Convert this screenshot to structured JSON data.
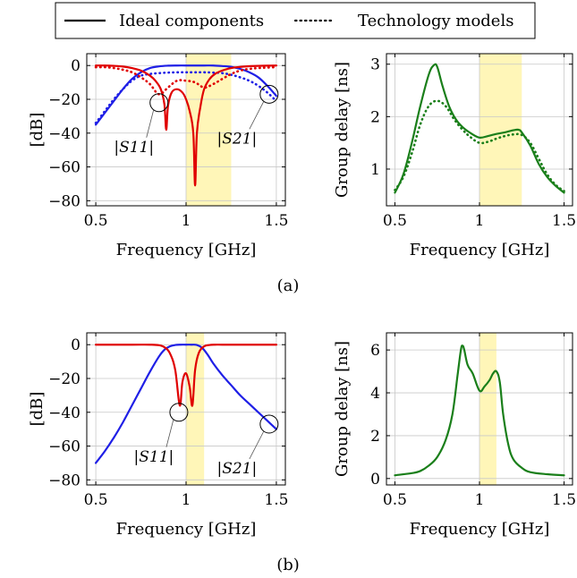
{
  "legend": {
    "ideal_label": "Ideal components",
    "tech_label": "Technology models"
  },
  "captions": {
    "a": "(a)",
    "b": "(b)"
  },
  "colors": {
    "s11": "#e00000",
    "s21": "#1f1fe6",
    "group_delay": "#1a7f1a",
    "passband": "#fff6b8"
  },
  "chart_data": [
    {
      "id": "a-s-params",
      "type": "line",
      "xlabel": "Frequency [GHz]",
      "ylabel": "[dB]",
      "xlim": [
        0.45,
        1.55
      ],
      "ylim": [
        -83,
        7
      ],
      "xticks": [
        0.5,
        1,
        1.5
      ],
      "xtick_labels": [
        "0.5",
        "1",
        "1.5"
      ],
      "yticks": [
        0,
        -20,
        -40,
        -60,
        -80
      ],
      "ytick_labels": [
        "0",
        "−20",
        "−40",
        "−60",
        "−80"
      ],
      "grid": true,
      "passband": [
        1.0,
        1.25
      ],
      "annotations": [
        {
          "text": "|S11|",
          "mark_x": 0.85,
          "mark_y": -22
        },
        {
          "text": "|S21|",
          "mark_x": 1.46,
          "mark_y": -17
        }
      ],
      "series": [
        {
          "id": "S21-ideal",
          "color": "s21",
          "style": "solid",
          "x": [
            0.5,
            0.55,
            0.6,
            0.65,
            0.7,
            0.75,
            0.8,
            0.85,
            0.9,
            0.95,
            1.0,
            1.05,
            1.1,
            1.15,
            1.2,
            1.25,
            1.3,
            1.35,
            1.4,
            1.45,
            1.5
          ],
          "y": [
            -35,
            -28,
            -21,
            -14,
            -8,
            -4,
            -1.5,
            -0.5,
            -0.1,
            0,
            0,
            0,
            0,
            0,
            -0.3,
            -0.8,
            -2,
            -4,
            -7,
            -12,
            -18
          ]
        },
        {
          "id": "S21-tech",
          "color": "s21",
          "style": "dotted",
          "x": [
            0.5,
            0.55,
            0.6,
            0.65,
            0.7,
            0.75,
            0.8,
            0.85,
            0.9,
            0.95,
            1.0,
            1.05,
            1.1,
            1.15,
            1.2,
            1.25,
            1.3,
            1.35,
            1.4,
            1.45,
            1.5
          ],
          "y": [
            -34,
            -27,
            -20,
            -14,
            -9,
            -6,
            -5,
            -4.5,
            -4.2,
            -4,
            -4,
            -4,
            -4,
            -4.2,
            -4.5,
            -5.5,
            -7,
            -9,
            -12,
            -16,
            -21
          ]
        },
        {
          "id": "S11-ideal",
          "color": "s11",
          "style": "solid",
          "x": [
            0.5,
            0.55,
            0.6,
            0.65,
            0.7,
            0.75,
            0.8,
            0.83,
            0.86,
            0.88,
            0.89,
            0.9,
            0.92,
            0.95,
            0.98,
            1.0,
            1.02,
            1.04,
            1.05,
            1.06,
            1.08,
            1.1,
            1.13,
            1.16,
            1.2,
            1.25,
            1.3,
            1.35,
            1.4,
            1.45,
            1.5
          ],
          "y": [
            0,
            0,
            -0.2,
            -0.6,
            -1.5,
            -3,
            -6,
            -9,
            -14,
            -23,
            -38,
            -24,
            -16,
            -14,
            -16,
            -20,
            -27,
            -40,
            -71,
            -40,
            -24,
            -14,
            -8,
            -5,
            -3,
            -1.5,
            -0.8,
            -0.4,
            -0.2,
            -0.1,
            0
          ]
        },
        {
          "id": "S11-tech",
          "color": "s11",
          "style": "dotted",
          "x": [
            0.5,
            0.55,
            0.6,
            0.65,
            0.7,
            0.75,
            0.8,
            0.85,
            0.9,
            0.95,
            1.0,
            1.05,
            1.1,
            1.15,
            1.2,
            1.25,
            1.3,
            1.35,
            1.4,
            1.45,
            1.5
          ],
          "y": [
            -1,
            -1,
            -1.5,
            -2.5,
            -4,
            -7,
            -11,
            -17,
            -13,
            -9,
            -9,
            -10,
            -13,
            -11,
            -8,
            -5,
            -3,
            -2,
            -1.5,
            -1.2,
            -1
          ]
        }
      ]
    },
    {
      "id": "a-group-delay",
      "type": "line",
      "xlabel": "Frequency [GHz]",
      "ylabel": "Group delay [ns]",
      "xlim": [
        0.45,
        1.55
      ],
      "ylim": [
        0.3,
        3.2
      ],
      "xticks": [
        0.5,
        1,
        1.5
      ],
      "xtick_labels": [
        "0.5",
        "1",
        "1.5"
      ],
      "yticks": [
        1,
        2,
        3
      ],
      "ytick_labels": [
        "1",
        "2",
        "3"
      ],
      "grid": true,
      "passband": [
        1.0,
        1.25
      ],
      "series": [
        {
          "id": "GD-ideal",
          "color": "group_delay",
          "style": "solid",
          "x": [
            0.5,
            0.55,
            0.6,
            0.65,
            0.7,
            0.73,
            0.75,
            0.78,
            0.82,
            0.86,
            0.9,
            0.95,
            1.0,
            1.05,
            1.1,
            1.15,
            1.2,
            1.23,
            1.25,
            1.3,
            1.35,
            1.4,
            1.45,
            1.5
          ],
          "y": [
            0.55,
            0.9,
            1.5,
            2.2,
            2.8,
            2.98,
            2.95,
            2.6,
            2.2,
            1.95,
            1.8,
            1.68,
            1.6,
            1.63,
            1.67,
            1.7,
            1.74,
            1.75,
            1.7,
            1.45,
            1.1,
            0.85,
            0.68,
            0.55
          ]
        },
        {
          "id": "GD-tech",
          "color": "group_delay",
          "style": "dotted",
          "x": [
            0.5,
            0.55,
            0.6,
            0.65,
            0.7,
            0.75,
            0.8,
            0.85,
            0.9,
            0.95,
            1.0,
            1.05,
            1.1,
            1.15,
            1.2,
            1.25,
            1.3,
            1.35,
            1.4,
            1.45,
            1.5
          ],
          "y": [
            0.6,
            0.85,
            1.3,
            1.85,
            2.2,
            2.3,
            2.2,
            1.95,
            1.75,
            1.6,
            1.5,
            1.52,
            1.58,
            1.63,
            1.66,
            1.65,
            1.5,
            1.2,
            0.9,
            0.7,
            0.58
          ]
        }
      ]
    },
    {
      "id": "b-s-params",
      "type": "line",
      "xlabel": "Frequency [GHz]",
      "ylabel": "[dB]",
      "xlim": [
        0.45,
        1.55
      ],
      "ylim": [
        -83,
        7
      ],
      "xticks": [
        0.5,
        1,
        1.5
      ],
      "xtick_labels": [
        "0.5",
        "1",
        "1.5"
      ],
      "yticks": [
        0,
        -20,
        -40,
        -60,
        -80
      ],
      "ytick_labels": [
        "0",
        "−20",
        "−40",
        "−60",
        "−80"
      ],
      "grid": true,
      "passband": [
        1.0,
        1.1
      ],
      "annotations": [
        {
          "text": "|S11|",
          "mark_x": 0.96,
          "mark_y": -40
        },
        {
          "text": "|S21|",
          "mark_x": 1.46,
          "mark_y": -47
        }
      ],
      "series": [
        {
          "id": "S21-ideal",
          "color": "s21",
          "style": "solid",
          "x": [
            0.5,
            0.55,
            0.6,
            0.65,
            0.7,
            0.75,
            0.8,
            0.85,
            0.88,
            0.91,
            0.94,
            0.97,
            1.0,
            1.03,
            1.06,
            1.09,
            1.12,
            1.15,
            1.2,
            1.25,
            1.3,
            1.35,
            1.4,
            1.45,
            1.5
          ],
          "y": [
            -70,
            -63,
            -55,
            -46,
            -36,
            -26,
            -16,
            -7,
            -3,
            -1,
            -0.2,
            0,
            0,
            0,
            -0.2,
            -2,
            -6,
            -11,
            -18,
            -24,
            -30,
            -35,
            -40,
            -45,
            -50
          ]
        },
        {
          "id": "S11-ideal",
          "color": "s11",
          "style": "solid",
          "x": [
            0.5,
            0.7,
            0.8,
            0.85,
            0.88,
            0.91,
            0.94,
            0.965,
            0.98,
            1.0,
            1.02,
            1.035,
            1.05,
            1.07,
            1.1,
            1.13,
            1.16,
            1.2,
            1.3,
            1.5
          ],
          "y": [
            0,
            0,
            0,
            -0.3,
            -1.5,
            -5,
            -15,
            -36,
            -22,
            -17,
            -25,
            -36,
            -15,
            -5,
            -1,
            -0.2,
            0,
            0,
            0,
            0
          ]
        }
      ]
    },
    {
      "id": "b-group-delay",
      "type": "line",
      "xlabel": "Frequency [GHz]",
      "ylabel": "Group delay [ns]",
      "xlim": [
        0.45,
        1.55
      ],
      "ylim": [
        -0.3,
        6.8
      ],
      "xticks": [
        0.5,
        1,
        1.5
      ],
      "xtick_labels": [
        "0.5",
        "1",
        "1.5"
      ],
      "yticks": [
        0,
        2,
        4,
        6
      ],
      "ytick_labels": [
        "0",
        "2",
        "4",
        "6"
      ],
      "grid": true,
      "passband": [
        1.0,
        1.1
      ],
      "series": [
        {
          "id": "GD-ideal",
          "color": "group_delay",
          "style": "solid",
          "x": [
            0.5,
            0.6,
            0.65,
            0.7,
            0.75,
            0.8,
            0.84,
            0.87,
            0.89,
            0.9,
            0.91,
            0.93,
            0.96,
            1.0,
            1.03,
            1.06,
            1.08,
            1.1,
            1.12,
            1.14,
            1.17,
            1.2,
            1.25,
            1.3,
            1.4,
            1.5
          ],
          "y": [
            0.15,
            0.25,
            0.35,
            0.6,
            1.0,
            1.8,
            3.0,
            4.8,
            6.0,
            6.2,
            6.0,
            5.3,
            4.9,
            4.1,
            4.3,
            4.6,
            4.9,
            5.0,
            4.5,
            3.0,
            1.6,
            0.9,
            0.5,
            0.3,
            0.2,
            0.15
          ]
        }
      ]
    }
  ]
}
